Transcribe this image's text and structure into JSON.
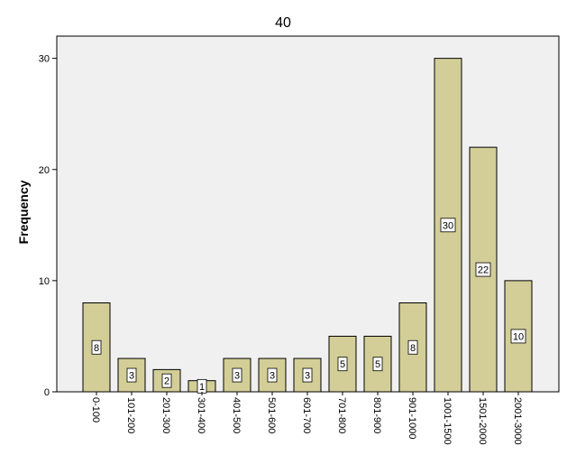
{
  "chart_data": {
    "type": "bar",
    "title": "40",
    "xlabel": "",
    "ylabel": "Frequency",
    "categories": [
      "0-100",
      "101-200",
      "201-300",
      "301-400",
      "401-500",
      "501-600",
      "601-700",
      "701-800",
      "801-900",
      "901-1000",
      "1001-1500",
      "1501-2000",
      "2001-3000"
    ],
    "values": [
      8,
      3,
      2,
      1,
      3,
      3,
      3,
      5,
      5,
      8,
      30,
      22,
      10
    ],
    "data_labels": [
      "8",
      "3",
      "2",
      "1",
      "3",
      "3",
      "3",
      "5",
      "5",
      "8",
      "30",
      "22",
      "10"
    ],
    "yticks": [
      "0",
      "10",
      "20",
      "30"
    ],
    "ylim": [
      0,
      32
    ],
    "grid": false,
    "legend": "none",
    "colors": {
      "bar_fill": "#d3ce97",
      "bar_stroke": "#000000",
      "plot_background": "#f0f0f0",
      "label_box_fill": "#ffffff"
    }
  }
}
